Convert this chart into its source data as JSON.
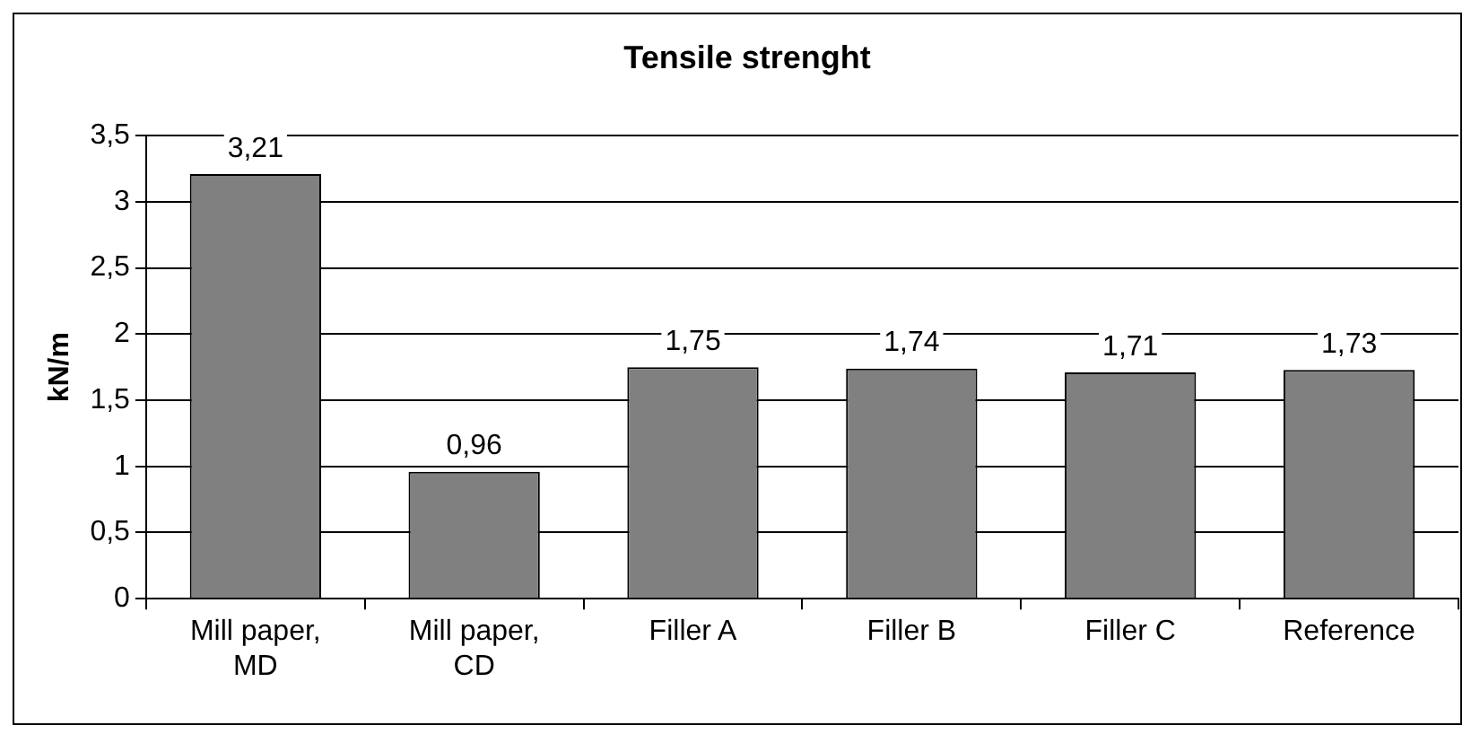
{
  "chart_data": {
    "type": "bar",
    "title": "Tensile strenght",
    "ylabel": "kN/m",
    "categories": [
      "Mill paper, MD",
      "Mill paper, CD",
      "Filler A",
      "Filler B",
      "Filler C",
      "Reference"
    ],
    "values": [
      3.21,
      0.96,
      1.75,
      1.74,
      1.71,
      1.73
    ],
    "value_labels": [
      "3,21",
      "0,96",
      "1,75",
      "1,74",
      "1,71",
      "1,73"
    ],
    "color": "#808080",
    "ylim": [
      0,
      3.5
    ],
    "yticks": [
      {
        "value": 0,
        "label": "0"
      },
      {
        "value": 0.5,
        "label": "0,5"
      },
      {
        "value": 1,
        "label": "1"
      },
      {
        "value": 1.5,
        "label": "1,5"
      },
      {
        "value": 2,
        "label": "2"
      },
      {
        "value": 2.5,
        "label": "2,5"
      },
      {
        "value": 3,
        "label": "3"
      },
      {
        "value": 3.5,
        "label": "3,5"
      }
    ],
    "grid": "y",
    "legend": false
  }
}
